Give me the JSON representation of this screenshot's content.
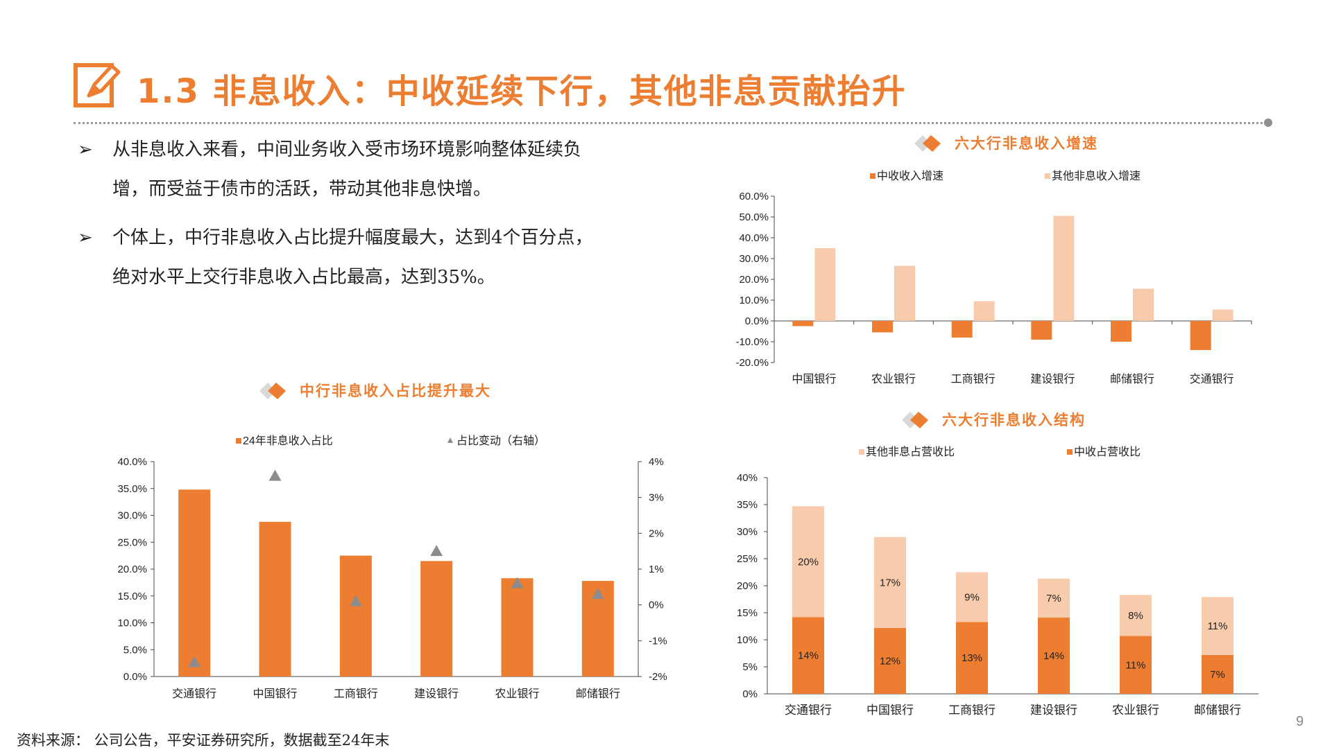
{
  "header": {
    "title": "1.3 非息收入：中收延续下行，其他非息贡献抬升"
  },
  "bullets": [
    {
      "line1": "从非息收入来看，中间业务收入受市场环境影响整体延续负",
      "line2": "增，而受益于债市的活跃，带动其他非息快增。"
    },
    {
      "line1": "个体上，中行非息收入占比提升幅度最大，达到4个百分点，",
      "line2": "绝对水平上交行非息收入占比最高，达到35%。"
    }
  ],
  "colors": {
    "accent": "#ED7D31",
    "light": "#F8CBAD",
    "marker": "#8C8C8C"
  },
  "source": "资料来源：  公司公告，平安证券研究所，数据截至24年末",
  "page_number": "9",
  "chart_data": [
    {
      "type": "bar",
      "title": "六大行非息收入增速",
      "categories": [
        "中国银行",
        "农业银行",
        "工商银行",
        "建设银行",
        "邮储银行",
        "交通银行"
      ],
      "series": [
        {
          "name": "中收收入增速",
          "values": [
            -2.5,
            -5.5,
            -8.0,
            -9.0,
            -10.0,
            -14.0
          ]
        },
        {
          "name": "其他非息收入增速",
          "values": [
            35.0,
            26.5,
            9.5,
            50.5,
            15.5,
            5.5
          ]
        }
      ],
      "ylim": [
        -20,
        60
      ],
      "yticks": [
        "60.0%",
        "50.0%",
        "40.0%",
        "30.0%",
        "20.0%",
        "10.0%",
        "0.0%",
        "-10.0%",
        "-20.0%"
      ],
      "legend": "top"
    },
    {
      "type": "bar",
      "title": "中行非息收入占比提升最大",
      "categories": [
        "交通银行",
        "中国银行",
        "工商银行",
        "建设银行",
        "农业银行",
        "邮储银行"
      ],
      "series": [
        {
          "name": "24年非息收入占比",
          "values": [
            34.8,
            28.8,
            22.5,
            21.5,
            18.3,
            17.8
          ]
        },
        {
          "name": "占比变动（右轴）",
          "values": [
            -1.6,
            3.6,
            0.1,
            1.5,
            0.6,
            0.3
          ]
        }
      ],
      "ylim": [
        0,
        40
      ],
      "y2lim": [
        -2,
        4
      ],
      "yticks": [
        "40.0%",
        "35.0%",
        "30.0%",
        "25.0%",
        "20.0%",
        "15.0%",
        "10.0%",
        "5.0%",
        "0.0%"
      ],
      "y2ticks": [
        "4%",
        "3%",
        "2%",
        "1%",
        "0%",
        "-1%",
        "-2%"
      ],
      "legend": "top"
    },
    {
      "type": "bar",
      "stacked": true,
      "title": "六大行非息收入结构",
      "categories": [
        "交通银行",
        "中国银行",
        "工商银行",
        "建设银行",
        "农业银行",
        "邮储银行"
      ],
      "series": [
        {
          "name": "其他非息占营收比",
          "values": [
            20.5,
            16.8,
            9.2,
            7.2,
            7.6,
            10.7
          ],
          "labels": [
            "20%",
            "17%",
            "9%",
            "7%",
            "8%",
            "11%"
          ]
        },
        {
          "name": "中收占营收比",
          "values": [
            14.2,
            12.2,
            13.3,
            14.1,
            10.7,
            7.2
          ],
          "labels": [
            "14%",
            "12%",
            "13%",
            "14%",
            "11%",
            "7%"
          ]
        }
      ],
      "ylim": [
        0,
        40
      ],
      "yticks": [
        "40%",
        "35%",
        "30%",
        "25%",
        "20%",
        "15%",
        "10%",
        "5%",
        "0%"
      ],
      "legend": "top"
    }
  ]
}
